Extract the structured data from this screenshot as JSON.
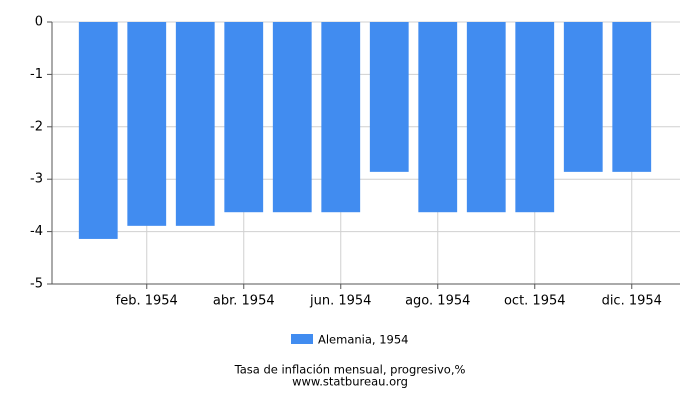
{
  "chart_data": {
    "type": "bar",
    "categories": [
      null,
      "feb. 1954",
      null,
      "abr. 1954",
      null,
      "jun. 1954",
      null,
      "ago. 1954",
      null,
      "oct. 1954",
      null,
      "dic. 1954"
    ],
    "series": [
      {
        "name": "Alemania, 1954",
        "color": "#418cf0",
        "values": [
          -4.14,
          -3.89,
          -3.89,
          -3.63,
          -3.63,
          -3.63,
          -2.86,
          -3.63,
          -3.63,
          -3.63,
          -2.86,
          -2.86
        ]
      }
    ],
    "ylim": [
      -5,
      0
    ],
    "yticks": [
      0,
      -1,
      -2,
      -3,
      -4,
      -5
    ],
    "grid": true,
    "xlabel": "Tasa de inflación mensual, progresivo,%",
    "source": "www.statbureau.org"
  }
}
